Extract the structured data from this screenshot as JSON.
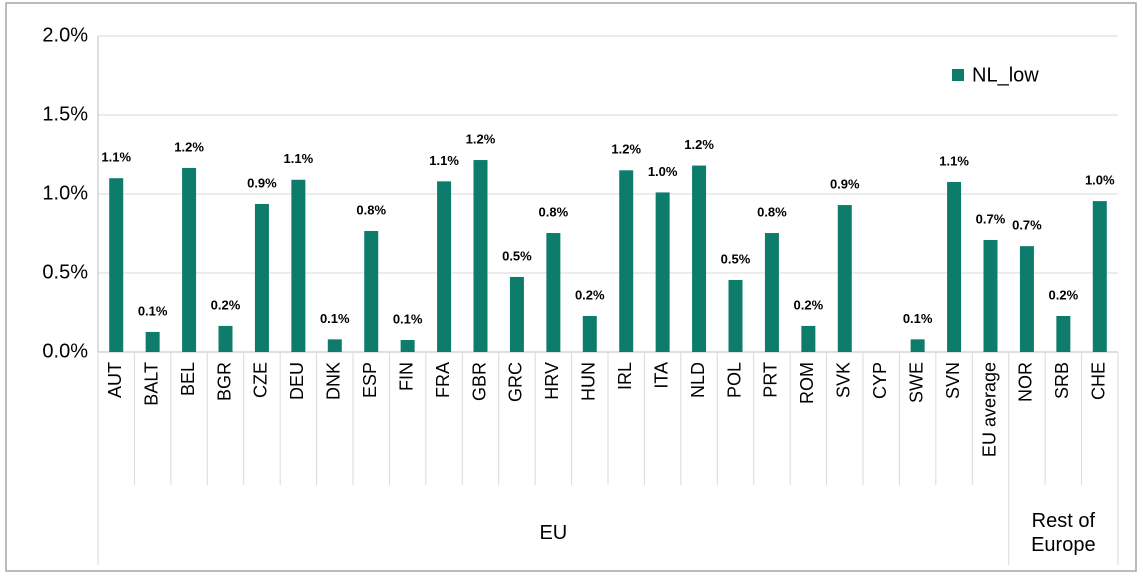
{
  "chart_data": {
    "type": "bar",
    "categories": [
      "AUT",
      "BALT",
      "BEL",
      "BGR",
      "CZE",
      "DEU",
      "DNK",
      "ESP",
      "FIN",
      "FRA",
      "GBR",
      "GRC",
      "HRV",
      "HUN",
      "IRL",
      "ITA",
      "NLD",
      "POL",
      "PRT",
      "ROM",
      "SVK",
      "CYP",
      "SWE",
      "SVN",
      "EU average",
      "NOR",
      "SRB",
      "CHE"
    ],
    "groups": [
      {
        "name": "EU",
        "size": 25
      },
      {
        "name": "Rest of Europe",
        "size": 3
      }
    ],
    "series": [
      {
        "name": "NL_low",
        "color": "#0e7c6b",
        "values": [
          1.1,
          0.127,
          1.165,
          0.165,
          0.937,
          1.09,
          0.08,
          0.766,
          0.076,
          1.08,
          1.215,
          0.475,
          0.753,
          0.228,
          1.15,
          1.01,
          1.18,
          0.456,
          0.753,
          0.165,
          0.93,
          null,
          0.08,
          1.076,
          0.709,
          0.67,
          0.228,
          0.955
        ],
        "value_labels": [
          "1.1%",
          "0.1%",
          "1.2%",
          "0.2%",
          "0.9%",
          "1.1%",
          "0.1%",
          "0.8%",
          "0.1%",
          "1.1%",
          "1.2%",
          "0.5%",
          "0.8%",
          "0.2%",
          "1.2%",
          "1.0%",
          "1.2%",
          "0.5%",
          "0.8%",
          "0.2%",
          "0.9%",
          null,
          "0.1%",
          "1.1%",
          "0.7%",
          "0.7%",
          "0.2%",
          "1.0%"
        ]
      }
    ],
    "ylim": [
      0,
      2
    ],
    "yticks": [
      {
        "value": 0,
        "label": "0.0%"
      },
      {
        "value": 0.5,
        "label": "0.5%"
      },
      {
        "value": 1,
        "label": "1.0%"
      },
      {
        "value": 1.5,
        "label": "1.5%"
      },
      {
        "value": 2,
        "label": "2.0%"
      }
    ],
    "grid": true,
    "legend": "top-right"
  }
}
